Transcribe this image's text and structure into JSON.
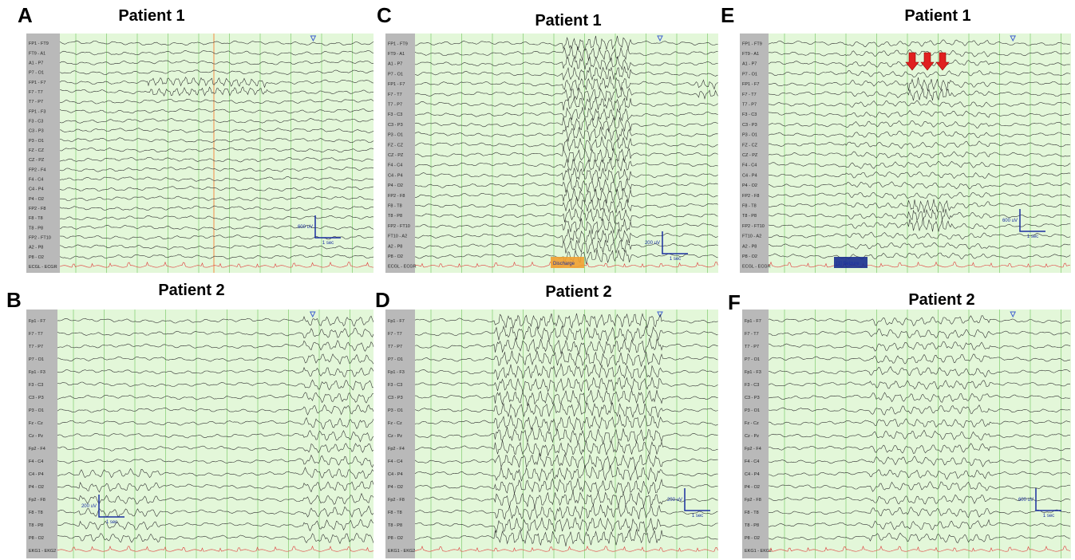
{
  "panels": [
    {
      "letter": "A",
      "title": "Patient 1",
      "channels": [
        "FP1 - FT9",
        "FT9 - A1",
        "A1 - P7",
        "P7 - O1",
        "FP1 - F7",
        "F7 - T7",
        "T7 - P7",
        "FP1 - F3",
        "F3 - C3",
        "C3 - P3",
        "P3 - O1",
        "FZ - CZ",
        "CZ - PZ",
        "FP2 - F4",
        "F4 - C4",
        "C4 - P4",
        "P4 - O2",
        "FP2 - F8",
        "F8 - T8",
        "T8 - P8",
        "FP2 - FT10",
        "A2 - P8",
        "P8 - O2",
        "ECGL - ECGR"
      ],
      "scale": {
        "amplitude": "600 uV",
        "time": "1 sec"
      }
    },
    {
      "letter": "C",
      "title": "Patient 1",
      "channels": [
        "FP1 - FT9",
        "FT9 - A1",
        "A1 - P7",
        "P7 - O1",
        "FP1 - F7",
        "F7 - T7",
        "T7 - P7",
        "F3 - C3",
        "C3 - P3",
        "P3 - O1",
        "FZ - CZ",
        "CZ - PZ",
        "F4 - C4",
        "C4 - P4",
        "P4 - O2",
        "FP2 - F8",
        "F8 - T8",
        "T8 - P8",
        "FP2 - FT10",
        "FT10 - A2",
        "A2 - P8",
        "P8 - O2",
        "ECGL - ECGR"
      ],
      "scale": {
        "amplitude": "200 uV",
        "time": "1 sec"
      },
      "annotation": "Discharge"
    },
    {
      "letter": "E",
      "title": "Patient 1",
      "channels": [
        "FP1 - FT9",
        "FT9 - A1",
        "A1 - P7",
        "P7 - O1",
        "FP1 - F7",
        "F7 - T7",
        "T7 - P7",
        "F3 - C3",
        "C3 - P3",
        "P3 - O1",
        "FZ - CZ",
        "CZ - PZ",
        "F4 - C4",
        "C4 - P4",
        "P4 - O2",
        "FP2 - F8",
        "F8 - T8",
        "T8 - P8",
        "FP2 - FT10",
        "FT10 - A2",
        "A2 - P8",
        "P8 - O2",
        "ECGL - ECGR"
      ],
      "scale": {
        "amplitude": "600 uV",
        "time": "1 sec"
      },
      "annotation": "[1] Seizure"
    },
    {
      "letter": "B",
      "title": "Patient 2",
      "channels": [
        "Fp1 - F7",
        "F7 - T7",
        "T7 - P7",
        "P7 - O1",
        "Fp1 - F3",
        "F3 - C3",
        "C3 - P3",
        "P3 - O1",
        "Fz - Cz",
        "Cz - Pz",
        "Fp2 - F4",
        "F4 - C4",
        "C4 - P4",
        "P4 - O2",
        "Fp2 - F8",
        "F8 - T8",
        "T8 - P8",
        "P8 - O2",
        "EKG1 - EKG2"
      ],
      "scale": {
        "amplitude": "200 uV",
        "time": "1 sec"
      }
    },
    {
      "letter": "D",
      "title": "Patient 2",
      "channels": [
        "Fp1 - F7",
        "F7 - T7",
        "T7 - P7",
        "P7 - O1",
        "Fp1 - F3",
        "F3 - C3",
        "C3 - P3",
        "P3 - O1",
        "Fz - Cz",
        "Cz - Pz",
        "Fp2 - F4",
        "F4 - C4",
        "C4 - P4",
        "P4 - O2",
        "Fp2 - F8",
        "F8 - T8",
        "T8 - P8",
        "P8 - O2",
        "EKG1 - EKG2"
      ],
      "scale": {
        "amplitude": "200 uV",
        "time": "1 sec"
      }
    },
    {
      "letter": "F",
      "title": "Patient 2",
      "channels": [
        "Fp1 - F7",
        "F7 - T7",
        "T7 - P7",
        "P7 - O1",
        "Fp1 - F3",
        "F3 - C3",
        "C3 - P3",
        "P3 - O1",
        "Fz - Cz",
        "Cz - Pz",
        "Fp2 - F4",
        "F4 - C4",
        "C4 - P4",
        "P4 - O2",
        "Fp2 - F8",
        "F8 - T8",
        "T8 - P8",
        "P8 - O2",
        "EKG1 - EKG2"
      ],
      "scale": {
        "amplitude": "600 uV",
        "time": "1 sec"
      }
    }
  ]
}
